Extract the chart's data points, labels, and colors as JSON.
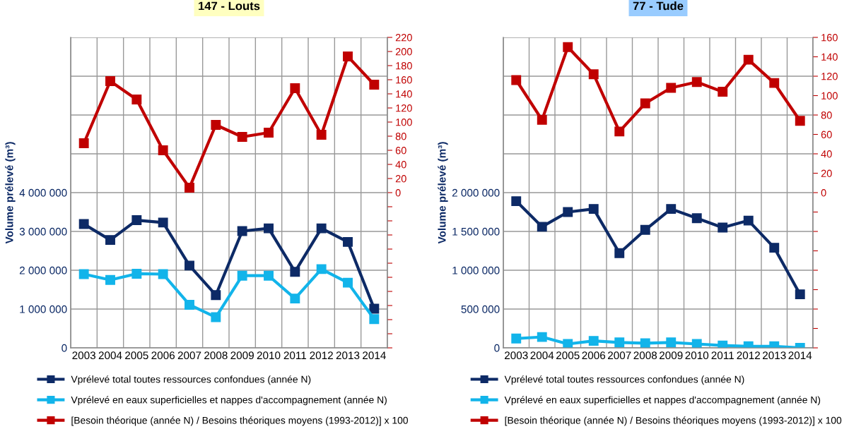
{
  "chart_data": [
    {
      "type": "line",
      "title": "147 - Louts",
      "ylabel": "Volume prélevé (m³)",
      "categories": [
        "2003",
        "2004",
        "2005",
        "2006",
        "2007",
        "2008",
        "2009",
        "2010",
        "2011",
        "2012",
        "2013",
        "2014"
      ],
      "series": [
        {
          "name": "Vprélevé total toutes ressources confondues (année N)",
          "color": "#0d2a66",
          "values": [
            3190000,
            2780000,
            3290000,
            3230000,
            2120000,
            1360000,
            3010000,
            3080000,
            1960000,
            3080000,
            2730000,
            1010000
          ]
        },
        {
          "name": "Vprélevé en eaux superficielles et nappes d'accompagnement (année N)",
          "color": "#12b4ea",
          "values": [
            1900000,
            1750000,
            1910000,
            1900000,
            1110000,
            790000,
            1860000,
            1860000,
            1270000,
            2030000,
            1680000,
            740000
          ]
        },
        {
          "name": "[Besoin théorique (année N) / Besoins théoriques moyens (1993-2012)] x 100",
          "color": "#c00000",
          "axis": "y2",
          "values": [
            70,
            158,
            132,
            60,
            7,
            96,
            79,
            85,
            148,
            82,
            193,
            153
          ]
        }
      ],
      "ylim": [
        0,
        8000000
      ],
      "yticks": [
        0,
        {
          "value": 1000000,
          "label": "1 000 000"
        },
        {
          "value": 2000000,
          "label": "2 000 000"
        },
        {
          "value": 3000000,
          "label": "3 000 000"
        },
        {
          "value": 4000000,
          "label": "4 000 000"
        },
        {
          "value": 5000000,
          "label": null
        },
        {
          "value": 6000000,
          "label": null
        },
        {
          "value": 7000000,
          "label": null
        },
        {
          "value": 8000000,
          "label": null
        }
      ],
      "y2lim": [
        -220,
        220
      ],
      "y2ticks": [
        {
          "value": -220,
          "label": null
        },
        {
          "value": -200,
          "label": null
        },
        {
          "value": -180,
          "label": null
        },
        {
          "value": -160,
          "label": null
        },
        {
          "value": -140,
          "label": null
        },
        {
          "value": -120,
          "label": null
        },
        {
          "value": -100,
          "label": null
        },
        {
          "value": -80,
          "label": null
        },
        {
          "value": -60,
          "label": null
        },
        {
          "value": -40,
          "label": null
        },
        {
          "value": -20,
          "label": null
        },
        0,
        20,
        40,
        60,
        80,
        100,
        120,
        140,
        160,
        180,
        200,
        220
      ],
      "grid": true,
      "legend": "bottom",
      "marker": "square",
      "line_style": "solid"
    },
    {
      "type": "line",
      "title": "77 - Tude",
      "ylabel": "Volume prélevé (m³)",
      "categories": [
        "2003",
        "2004",
        "2005",
        "2006",
        "2007",
        "2008",
        "2009",
        "2010",
        "2011",
        "2012",
        "2013",
        "2014"
      ],
      "series": [
        {
          "name": "Vprélevé total toutes ressources confondues (année N)",
          "color": "#0d2a66",
          "values": [
            1890000,
            1560000,
            1750000,
            1790000,
            1220000,
            1520000,
            1790000,
            1670000,
            1550000,
            1640000,
            1290000,
            690000
          ]
        },
        {
          "name": "Vprélevé en eaux superficielles et nappes d'accompagnement (année N)",
          "color": "#12b4ea",
          "values": [
            120000,
            140000,
            50000,
            90000,
            70000,
            60000,
            70000,
            50000,
            30000,
            20000,
            20000,
            0
          ]
        },
        {
          "name": "[Besoin théorique (année N) / Besoins théoriques moyens (1993-2012)] x 100",
          "color": "#c00000",
          "axis": "y2",
          "values": [
            116,
            75,
            150,
            122,
            63,
            92,
            108,
            114,
            104,
            137,
            113,
            74
          ]
        }
      ],
      "ylim": [
        0,
        4000000
      ],
      "yticks": [
        0,
        {
          "value": 500000,
          "label": "500 000"
        },
        {
          "value": 1000000,
          "label": "1 000 000"
        },
        {
          "value": 1500000,
          "label": "1 500 000"
        },
        {
          "value": 2000000,
          "label": "2 000 000"
        },
        {
          "value": 2500000,
          "label": null
        },
        {
          "value": 3000000,
          "label": null
        },
        {
          "value": 3500000,
          "label": null
        },
        {
          "value": 4000000,
          "label": null
        }
      ],
      "y2lim": [
        -160,
        160
      ],
      "y2ticks": [
        {
          "value": -160,
          "label": null
        },
        {
          "value": -140,
          "label": null
        },
        {
          "value": -120,
          "label": null
        },
        {
          "value": -100,
          "label": null
        },
        {
          "value": -80,
          "label": null
        },
        {
          "value": -60,
          "label": null
        },
        {
          "value": -40,
          "label": null
        },
        {
          "value": -20,
          "label": null
        },
        0,
        20,
        40,
        60,
        80,
        100,
        120,
        140,
        160
      ],
      "grid": true,
      "legend": "bottom",
      "marker": "square",
      "line_style": "solid"
    }
  ]
}
